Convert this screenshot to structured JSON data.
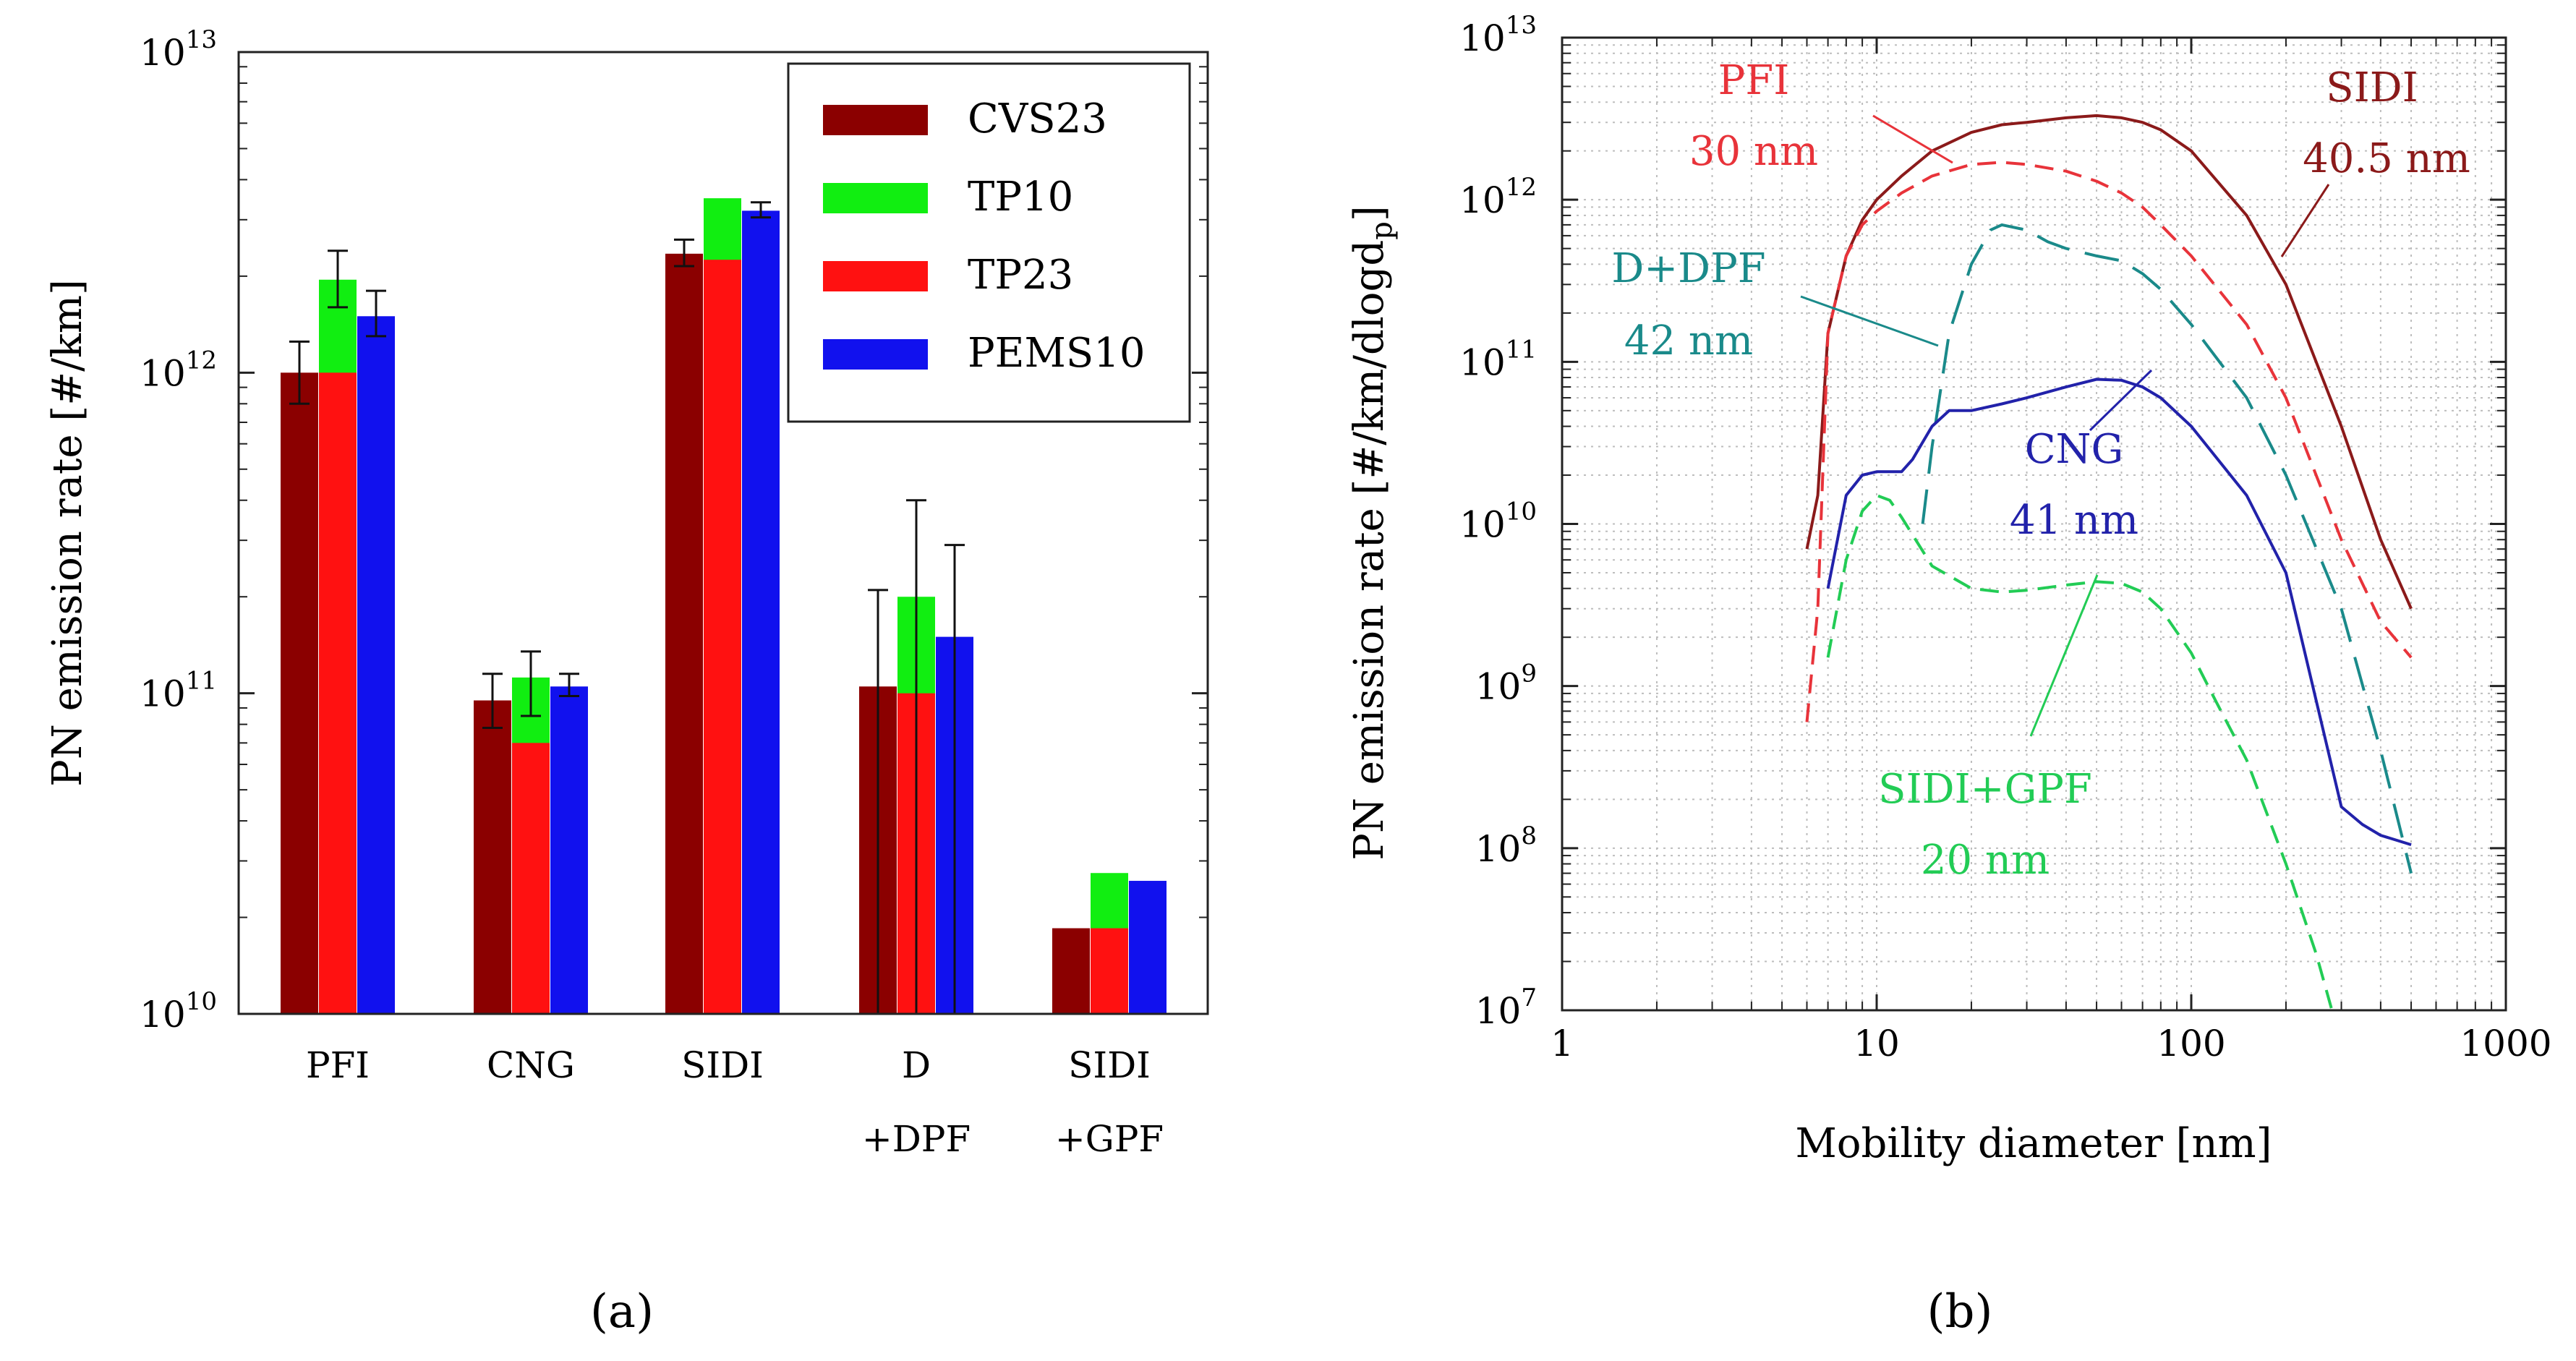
{
  "chart_data": [
    {
      "type": "bar",
      "panel_label": "(a)",
      "ylabel": "PN emission rate [#/km]",
      "yscale": "log",
      "ylim": [
        10000000000.0,
        10000000000000.0
      ],
      "ytick_labels": [
        {
          "base": "10",
          "exp": "10"
        },
        {
          "base": "10",
          "exp": "11"
        },
        {
          "base": "10",
          "exp": "12"
        },
        {
          "base": "10",
          "exp": "13"
        }
      ],
      "categories": [
        {
          "line1": "PFI",
          "line2": ""
        },
        {
          "line1": "CNG",
          "line2": ""
        },
        {
          "line1": "SIDI",
          "line2": ""
        },
        {
          "line1": "D",
          "line2": "+DPF"
        },
        {
          "line1": "SIDI",
          "line2": "+GPF"
        }
      ],
      "legend_position": "top-right",
      "series": [
        {
          "name": "CVS23",
          "color": "#8b0000",
          "values": [
            1000000000000.0,
            95000000000.0,
            2350000000000.0,
            105000000000.0,
            18500000000.0
          ],
          "err_low": [
            800000000000.0,
            78000000000.0,
            2150000000000.0,
            10000000000.0,
            null
          ],
          "err_high": [
            1250000000000.0,
            115000000000.0,
            2600000000000.0,
            210000000000.0,
            null
          ]
        },
        {
          "name": "TP10",
          "color": "#11ee11",
          "values": [
            1950000000000.0,
            112000000000.0,
            3500000000000.0,
            200000000000.0,
            27500000000.0
          ],
          "err_low": [
            1600000000000.0,
            85000000000.0,
            null,
            10000000000.0,
            null
          ],
          "err_high": [
            2400000000000.0,
            135000000000.0,
            null,
            400000000000.0,
            null
          ]
        },
        {
          "name": "TP23",
          "color": "#ff1111",
          "values": [
            1000000000000.0,
            70000000000.0,
            2250000000000.0,
            100000000000.0,
            18500000000.0
          ],
          "err_low": [
            null,
            null,
            null,
            null,
            null
          ],
          "err_high": [
            null,
            null,
            null,
            null,
            null
          ]
        },
        {
          "name": "PEMS10",
          "color": "#1111ee",
          "values": [
            1500000000000.0,
            105000000000.0,
            3200000000000.0,
            150000000000.0,
            26000000000.0
          ],
          "err_low": [
            1300000000000.0,
            98000000000.0,
            3050000000000.0,
            10000000000.0,
            null
          ],
          "err_high": [
            1800000000000.0,
            115000000000.0,
            3400000000000.0,
            290000000000.0,
            null
          ]
        }
      ]
    },
    {
      "type": "line",
      "panel_label": "(b)",
      "xlabel": "Mobility diameter [nm]",
      "ylabel_main": "PN emission rate [#/km/dlogd",
      "ylabel_sub": "p",
      "ylabel_end": "]",
      "xscale": "log",
      "yscale": "log",
      "xlim": [
        1,
        1000
      ],
      "ylim": [
        10000000.0,
        10000000000000.0
      ],
      "xtick_labels": [
        "1",
        "10",
        "100",
        "1000"
      ],
      "ytick_labels": [
        {
          "base": "10",
          "exp": "7"
        },
        {
          "base": "10",
          "exp": "8"
        },
        {
          "base": "10",
          "exp": "9"
        },
        {
          "base": "10",
          "exp": "10"
        },
        {
          "base": "10",
          "exp": "11"
        },
        {
          "base": "10",
          "exp": "12"
        },
        {
          "base": "10",
          "exp": "13"
        }
      ],
      "grid": true,
      "series": [
        {
          "name": "SIDI",
          "annotation": [
            "SIDI",
            "40.5 nm"
          ],
          "color": "#8b1a1a",
          "style": "solid",
          "x": [
            6,
            6.5,
            7,
            8,
            9,
            10,
            12,
            15,
            20,
            25,
            30,
            40,
            50,
            60,
            70,
            80,
            100,
            150,
            200,
            300,
            400,
            500
          ],
          "y": [
            7000000000.0,
            15000000000.0,
            150000000000.0,
            450000000000.0,
            750000000000.0,
            1000000000000.0,
            1400000000000.0,
            2000000000000.0,
            2600000000000.0,
            2900000000000.0,
            3000000000000.0,
            3200000000000.0,
            3300000000000.0,
            3200000000000.0,
            3000000000000.0,
            2700000000000.0,
            2000000000000.0,
            800000000000.0,
            300000000000.0,
            40000000000.0,
            8000000000.0,
            3000000000.0
          ]
        },
        {
          "name": "PFI",
          "annotation": [
            "PFI",
            "30 nm"
          ],
          "color": "#e8333a",
          "style": "dash",
          "x": [
            6,
            6.5,
            7,
            8,
            9,
            10,
            12,
            15,
            20,
            25,
            30,
            40,
            50,
            60,
            70,
            80,
            100,
            150,
            200,
            300,
            400,
            500
          ],
          "y": [
            600000000.0,
            3000000000.0,
            150000000000.0,
            450000000000.0,
            700000000000.0,
            850000000000.0,
            1100000000000.0,
            1400000000000.0,
            1650000000000.0,
            1700000000000.0,
            1650000000000.0,
            1500000000000.0,
            1300000000000.0,
            1100000000000.0,
            900000000000.0,
            700000000000.0,
            450000000000.0,
            170000000000.0,
            60000000000.0,
            8000000000.0,
            2500000000.0,
            1500000000.0
          ]
        },
        {
          "name": "D+DPF",
          "annotation": [
            "D+DPF",
            "42 nm"
          ],
          "color": "#1a8a8a",
          "style": "longdash",
          "x": [
            14,
            15,
            17,
            20,
            23,
            25,
            30,
            35,
            40,
            50,
            60,
            70,
            80,
            100,
            150,
            200,
            300,
            400,
            500
          ],
          "y": [
            10000000000.0,
            30000000000.0,
            150000000000.0,
            400000000000.0,
            650000000000.0,
            700000000000.0,
            650000000000.0,
            550000000000.0,
            500000000000.0,
            450000000000.0,
            420000000000.0,
            350000000000.0,
            280000000000.0,
            170000000000.0,
            60000000000.0,
            20000000000.0,
            3000000000.0,
            400000000.0,
            70000000.0
          ]
        },
        {
          "name": "CNG",
          "annotation": [
            "CNG",
            "41 nm"
          ],
          "color": "#2222aa",
          "style": "solid",
          "x": [
            7,
            8,
            9,
            10,
            11,
            12,
            13,
            15,
            17,
            20,
            25,
            30,
            40,
            50,
            60,
            70,
            80,
            100,
            150,
            200,
            300,
            350,
            400,
            500
          ],
          "y": [
            4000000000.0,
            15000000000.0,
            20000000000.0,
            21000000000.0,
            21000000000.0,
            21000000000.0,
            25000000000.0,
            40000000000.0,
            50000000000.0,
            50000000000.0,
            55000000000.0,
            60000000000.0,
            70000000000.0,
            78000000000.0,
            77000000000.0,
            70000000000.0,
            60000000000.0,
            40000000000.0,
            15000000000.0,
            5000000000.0,
            180000000.0,
            140000000.0,
            120000000.0,
            105000000.0
          ]
        },
        {
          "name": "SIDI+GPF",
          "annotation": [
            "SIDI+GPF",
            "20 nm"
          ],
          "color": "#22cc55",
          "style": "dash",
          "x": [
            7,
            8,
            9,
            10,
            11,
            12,
            15,
            20,
            25,
            30,
            40,
            50,
            60,
            70,
            80,
            100,
            120,
            150,
            200,
            250,
            280
          ],
          "y": [
            1500000000.0,
            6000000000.0,
            12000000000.0,
            15000000000.0,
            14000000000.0,
            11000000000.0,
            5500000000.0,
            4000000000.0,
            3800000000.0,
            3900000000.0,
            4200000000.0,
            4400000000.0,
            4300000000.0,
            3800000000.0,
            3000000000.0,
            1600000000.0,
            800000000.0,
            350000000.0,
            80000000.0,
            22000000.0,
            10000000.0
          ]
        }
      ]
    }
  ]
}
